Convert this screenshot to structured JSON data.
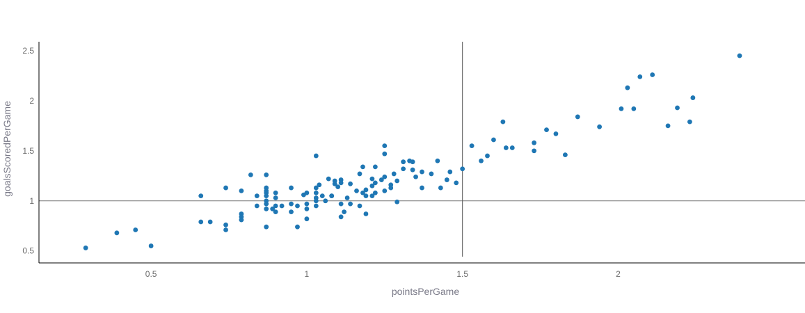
{
  "chart_data": {
    "type": "scatter",
    "xlabel": "pointsPerGame",
    "ylabel": "goalsScoredPerGame",
    "xlim": [
      0.14,
      2.6
    ],
    "ylim": [
      0.38,
      2.59
    ],
    "x_ticks": [
      0.5,
      1,
      1.5,
      2
    ],
    "x_tick_labels": [
      "0.5",
      "1",
      "1.5",
      "2"
    ],
    "y_ticks": [
      0.5,
      1,
      1.5,
      2,
      2.5
    ],
    "y_tick_labels": [
      "0.5",
      "1",
      "1.5",
      "2",
      "2.5"
    ],
    "reference_lines": {
      "x": 1.5,
      "y": 1.0
    },
    "grid": false,
    "legend": "none",
    "marker_color": "#1f77b4",
    "series": [
      {
        "points": [
          [
            0.29,
            0.53
          ],
          [
            0.39,
            0.68
          ],
          [
            0.45,
            0.71
          ],
          [
            0.5,
            0.55
          ],
          [
            0.66,
            1.05
          ],
          [
            0.66,
            0.79
          ],
          [
            0.69,
            0.79
          ],
          [
            0.74,
            1.13
          ],
          [
            0.74,
            0.76
          ],
          [
            0.74,
            0.71
          ],
          [
            0.79,
            1.1
          ],
          [
            0.79,
            0.87
          ],
          [
            0.79,
            0.84
          ],
          [
            0.79,
            0.81
          ],
          [
            0.82,
            1.26
          ],
          [
            0.84,
            1.05
          ],
          [
            0.84,
            0.95
          ],
          [
            0.87,
            1.26
          ],
          [
            0.87,
            1.13
          ],
          [
            0.87,
            1.1
          ],
          [
            0.87,
            1.08
          ],
          [
            0.87,
            1.05
          ],
          [
            0.87,
            1.0
          ],
          [
            0.87,
            0.97
          ],
          [
            0.87,
            0.92
          ],
          [
            0.87,
            0.74
          ],
          [
            0.89,
            0.92
          ],
          [
            0.9,
            1.08
          ],
          [
            0.9,
            1.03
          ],
          [
            0.9,
            0.95
          ],
          [
            0.9,
            0.89
          ],
          [
            0.92,
            0.95
          ],
          [
            0.95,
            1.13
          ],
          [
            0.95,
            0.97
          ],
          [
            0.95,
            0.89
          ],
          [
            0.97,
            0.95
          ],
          [
            0.97,
            0.74
          ],
          [
            0.99,
            1.06
          ],
          [
            1.0,
            1.08
          ],
          [
            1.0,
            0.97
          ],
          [
            1.0,
            0.92
          ],
          [
            1.0,
            0.82
          ],
          [
            1.03,
            1.45
          ],
          [
            1.03,
            1.13
          ],
          [
            1.03,
            1.08
          ],
          [
            1.03,
            1.03
          ],
          [
            1.03,
            1.0
          ],
          [
            1.03,
            0.95
          ],
          [
            1.04,
            1.16
          ],
          [
            1.05,
            1.05
          ],
          [
            1.06,
            1.0
          ],
          [
            1.07,
            1.22
          ],
          [
            1.08,
            1.05
          ],
          [
            1.08,
            1.05
          ],
          [
            1.09,
            1.2
          ],
          [
            1.09,
            1.17
          ],
          [
            1.1,
            1.14
          ],
          [
            1.11,
            1.21
          ],
          [
            1.11,
            1.18
          ],
          [
            1.11,
            0.97
          ],
          [
            1.11,
            0.84
          ],
          [
            1.12,
            0.89
          ],
          [
            1.13,
            1.03
          ],
          [
            1.14,
            1.17
          ],
          [
            1.14,
            0.97
          ],
          [
            1.16,
            1.1
          ],
          [
            1.17,
            1.27
          ],
          [
            1.17,
            0.95
          ],
          [
            1.18,
            1.34
          ],
          [
            1.18,
            1.08
          ],
          [
            1.19,
            1.11
          ],
          [
            1.19,
            1.05
          ],
          [
            1.19,
            0.87
          ],
          [
            1.21,
            1.22
          ],
          [
            1.21,
            1.15
          ],
          [
            1.21,
            1.05
          ],
          [
            1.22,
            1.34
          ],
          [
            1.22,
            1.18
          ],
          [
            1.22,
            1.08
          ],
          [
            1.24,
            1.21
          ],
          [
            1.25,
            1.55
          ],
          [
            1.25,
            1.47
          ],
          [
            1.25,
            1.24
          ],
          [
            1.25,
            1.1
          ],
          [
            1.27,
            1.16
          ],
          [
            1.27,
            1.13
          ],
          [
            1.28,
            1.27
          ],
          [
            1.29,
            1.2
          ],
          [
            1.29,
            0.99
          ],
          [
            1.31,
            1.39
          ],
          [
            1.31,
            1.32
          ],
          [
            1.33,
            1.4
          ],
          [
            1.34,
            1.39
          ],
          [
            1.34,
            1.31
          ],
          [
            1.35,
            1.24
          ],
          [
            1.37,
            1.29
          ],
          [
            1.37,
            1.13
          ],
          [
            1.4,
            1.27
          ],
          [
            1.42,
            1.4
          ],
          [
            1.43,
            1.13
          ],
          [
            1.45,
            1.21
          ],
          [
            1.46,
            1.29
          ],
          [
            1.48,
            1.18
          ],
          [
            1.5,
            1.32
          ],
          [
            1.53,
            1.55
          ],
          [
            1.56,
            1.4
          ],
          [
            1.58,
            1.45
          ],
          [
            1.6,
            1.61
          ],
          [
            1.63,
            1.79
          ],
          [
            1.64,
            1.53
          ],
          [
            1.66,
            1.53
          ],
          [
            1.73,
            1.58
          ],
          [
            1.73,
            1.5
          ],
          [
            1.77,
            1.71
          ],
          [
            1.8,
            1.67
          ],
          [
            1.83,
            1.46
          ],
          [
            1.87,
            1.84
          ],
          [
            1.94,
            1.74
          ],
          [
            2.01,
            1.92
          ],
          [
            2.03,
            2.13
          ],
          [
            2.05,
            1.92
          ],
          [
            2.07,
            2.24
          ],
          [
            2.11,
            2.26
          ],
          [
            2.16,
            1.75
          ],
          [
            2.19,
            1.93
          ],
          [
            2.23,
            1.79
          ],
          [
            2.24,
            2.03
          ],
          [
            2.39,
            2.45
          ]
        ]
      }
    ]
  }
}
